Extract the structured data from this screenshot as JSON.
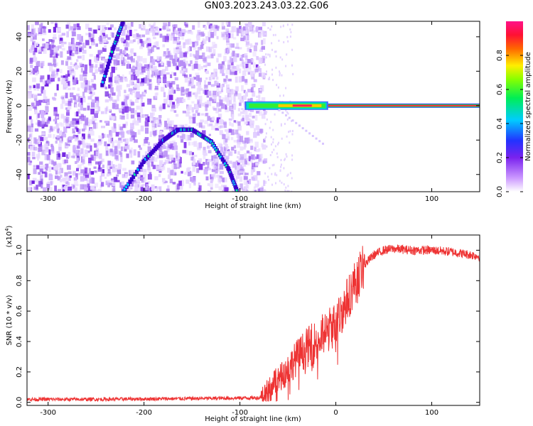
{
  "title": "GN03.2023.243.03.22.G06",
  "chart_data": [
    {
      "type": "heatmap",
      "xlabel": "Height of straight line (km)",
      "ylabel": "Frequency (Hz)",
      "xlim": [
        -322,
        150
      ],
      "ylim": [
        -50,
        49
      ],
      "xticks": [
        -300,
        -200,
        -100,
        0,
        100
      ],
      "yticks": [
        -40,
        -20,
        0,
        20,
        40
      ],
      "colorbar": {
        "label": "Normalized spectral amplitude",
        "range": [
          0,
          1
        ],
        "ticks": [
          "0.0",
          "0.2",
          "0.4",
          "0.6",
          "0.8"
        ],
        "colormap": "white-purple-blue-cyan-green-yellow-red-magenta"
      },
      "features": [
        {
          "name": "noise region",
          "x_range": [
            -322,
            -75
          ]
        },
        {
          "name": "carrier line",
          "x_start": -95,
          "x_end": 150,
          "frequency": 0
        },
        {
          "name": "arc",
          "x": [
            -222,
            -200,
            -180,
            -165,
            -150,
            -130,
            -112,
            -103
          ],
          "y": [
            -50,
            -32,
            -20,
            -14,
            -14,
            -21,
            -37,
            -50
          ]
        },
        {
          "name": "left streak",
          "x": [
            -244,
            -232,
            -222
          ],
          "y": [
            12,
            34,
            49
          ]
        }
      ]
    },
    {
      "type": "line",
      "xlabel": "Height of straight line (km)",
      "ylabel": "SNR (10 * v/v)",
      "y_multiplier": "(x10",
      "y_multiplier_exp": "4",
      "y_multiplier_close": ")",
      "xlim": [
        -322,
        150
      ],
      "ylim": [
        -0.02,
        1.1
      ],
      "xticks": [
        -300,
        -200,
        -100,
        0,
        100
      ],
      "yticks": [
        "0.0",
        "0.2",
        "0.4",
        "0.6",
        "0.8",
        "1.0"
      ],
      "series": [
        {
          "color": "#ee3333",
          "x": [
            -322,
            -250,
            -150,
            -80,
            -75,
            -70,
            -65,
            -60,
            -55,
            -50,
            -45,
            -40,
            -35,
            -30,
            -25,
            -20,
            -15,
            -10,
            -5,
            0,
            5,
            10,
            15,
            20,
            25,
            30,
            35,
            40,
            50,
            60,
            80,
            100,
            120,
            140,
            150
          ],
          "y": [
            0.02,
            0.02,
            0.025,
            0.03,
            0.05,
            0.08,
            0.12,
            0.15,
            0.18,
            0.22,
            0.26,
            0.3,
            0.33,
            0.36,
            0.38,
            0.4,
            0.43,
            0.46,
            0.49,
            0.52,
            0.58,
            0.65,
            0.72,
            0.79,
            0.85,
            0.9,
            0.94,
            0.97,
            1.0,
            1.01,
            1.0,
            1.0,
            0.99,
            0.97,
            0.96
          ]
        }
      ]
    }
  ]
}
